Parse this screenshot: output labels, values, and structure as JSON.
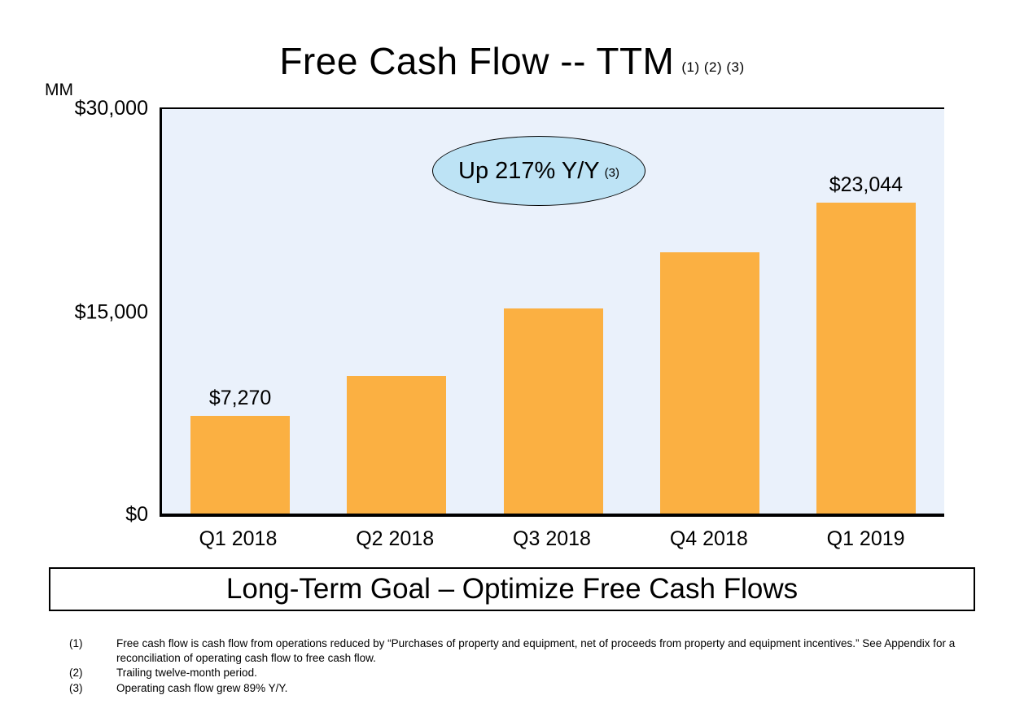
{
  "slide": {
    "title": "Free Cash Flow -- TTM",
    "title_superscript": "(1) (2) (3)",
    "callout_text": "Up 217% Y/Y",
    "callout_superscript": "(3)",
    "goal_box_text": "Long-Term Goal – Optimize Free Cash Flows",
    "footnotes": [
      {
        "num": "(1)",
        "text": "Free cash flow is cash flow from operations reduced by “Purchases of property and equipment, net of proceeds from property and equipment incentives.” See Appendix for a reconciliation of operating cash flow to free cash flow."
      },
      {
        "num": "(2)",
        "text": "Trailing twelve-month period."
      },
      {
        "num": "(3)",
        "text": "Operating cash flow grew 89% Y/Y."
      }
    ]
  },
  "chart_data": {
    "type": "bar",
    "title": "Free Cash Flow -- TTM",
    "ylabel": "MM",
    "xlabel": "",
    "categories": [
      "Q1 2018",
      "Q2 2018",
      "Q3 2018",
      "Q4 2018",
      "Q1 2019"
    ],
    "values": [
      7270,
      10200,
      15200,
      19400,
      23044
    ],
    "data_labels": [
      "$7,270",
      null,
      null,
      null,
      "$23,044"
    ],
    "ylim": [
      0,
      30000
    ],
    "yticks": [
      {
        "value": 30000,
        "label": "$30,000"
      },
      {
        "value": 15000,
        "label": "$15,000"
      },
      {
        "value": 0,
        "label": "$0"
      }
    ],
    "annotation": "Up 217% Y/Y (3)",
    "grid": false,
    "legend": "none",
    "bar_color": "#fbb042",
    "plot_bg": "#eaf1fb",
    "callout_fill": "#bde3f5"
  }
}
